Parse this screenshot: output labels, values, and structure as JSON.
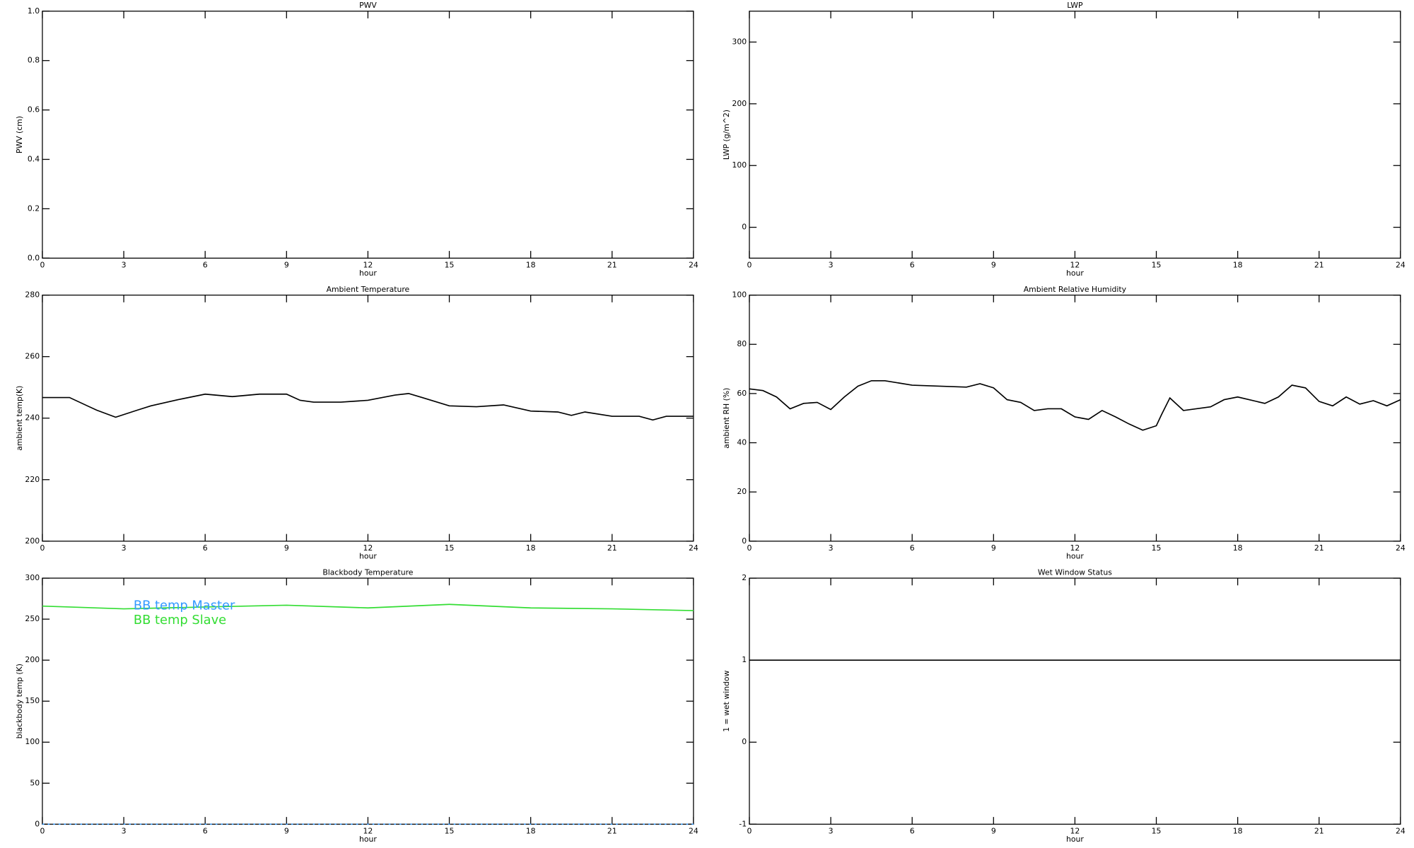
{
  "chart_data": [
    {
      "type": "line",
      "title": "PWV",
      "xlabel": "hour",
      "ylabel": "PWV (cm)",
      "xlim": [
        0,
        24
      ],
      "xticks": [
        0,
        3,
        6,
        9,
        12,
        15,
        18,
        21,
        24
      ],
      "ylim": [
        0,
        1
      ],
      "yticks": [
        {
          "value": 0,
          "label": "0.0"
        },
        {
          "value": 0.2,
          "label": "0.2"
        },
        {
          "value": 0.4,
          "label": "0.4"
        },
        {
          "value": 0.6,
          "label": "0.6"
        },
        {
          "value": 0.8,
          "label": "0.8"
        },
        {
          "value": 1,
          "label": "1.0"
        }
      ]
    },
    {
      "type": "line",
      "title": "LWP",
      "xlabel": "hour",
      "ylabel": "LWP (g/m^2)",
      "xlim": [
        0,
        24
      ],
      "xticks": [
        0,
        3,
        6,
        9,
        12,
        15,
        18,
        21,
        24
      ],
      "ylim": [
        -50,
        350
      ],
      "yticks": [
        0,
        100,
        200,
        300
      ]
    },
    {
      "type": "line",
      "title": "Ambient Temperature",
      "xlabel": "hour",
      "ylabel": "ambient temp(K)",
      "xlim": [
        0,
        24
      ],
      "xticks": [
        0,
        3,
        6,
        9,
        12,
        15,
        18,
        21,
        24
      ],
      "ylim": [
        200,
        280
      ],
      "yticks": [
        200,
        220,
        240,
        260,
        280
      ],
      "x": [
        0,
        1,
        2,
        2.7,
        3.5,
        4,
        5,
        6,
        7,
        8,
        9,
        9.5,
        10,
        11,
        12,
        13,
        13.5,
        14,
        15,
        16,
        17,
        18,
        19,
        19.5,
        20,
        21,
        22,
        22.5,
        23,
        24
      ],
      "series": [
        {
          "name": "ambient temp",
          "color": "#000000",
          "values": [
            246.7,
            246.7,
            242.6,
            240.3,
            242.6,
            244,
            246,
            247.8,
            247,
            247.8,
            247.8,
            245.8,
            245.2,
            245.2,
            245.8,
            247.5,
            248,
            246.7,
            244,
            243.7,
            244.3,
            242.3,
            242,
            240.9,
            242,
            240.6,
            240.6,
            239.4,
            240.6,
            240.6
          ]
        }
      ]
    },
    {
      "type": "line",
      "title": "Ambient Relative Humidity",
      "xlabel": "hour",
      "ylabel": "ambient RH (%)",
      "xlim": [
        0,
        24
      ],
      "xticks": [
        0,
        3,
        6,
        9,
        12,
        15,
        18,
        21,
        24
      ],
      "ylim": [
        0,
        100
      ],
      "yticks": [
        0,
        20,
        40,
        60,
        80,
        100
      ],
      "x": [
        0,
        0.5,
        1,
        1.5,
        2,
        2.5,
        3,
        3.5,
        4,
        4.5,
        5,
        6,
        7,
        8,
        8.5,
        9,
        9.5,
        10,
        10.5,
        11,
        11.5,
        12,
        12.5,
        13,
        13.5,
        14,
        14.5,
        15,
        15.2,
        15.5,
        16,
        17,
        17.5,
        18,
        19,
        19.5,
        20,
        20.5,
        21,
        21.5,
        22,
        22.5,
        23,
        23.5,
        24
      ],
      "series": [
        {
          "name": "ambient RH",
          "color": "#000000",
          "values": [
            61.9,
            61.2,
            58.6,
            53.8,
            56,
            56.4,
            53.5,
            58.6,
            63,
            65.2,
            65.2,
            63.4,
            63,
            62.6,
            64,
            62.3,
            57.5,
            56.4,
            53.1,
            53.8,
            53.8,
            50.5,
            49.5,
            53.1,
            50.5,
            47.6,
            45.1,
            46.9,
            51.6,
            58.2,
            53.1,
            54.6,
            57.5,
            58.6,
            56,
            58.6,
            63.4,
            62.3,
            56.8,
            55,
            58.6,
            55.7,
            57.1,
            55,
            57.5
          ]
        }
      ]
    },
    {
      "type": "line",
      "title": "Blackbody Temperature",
      "xlabel": "hour",
      "ylabel": "blackbody temp (K)",
      "xlim": [
        0,
        24
      ],
      "xticks": [
        0,
        3,
        6,
        9,
        12,
        15,
        18,
        21,
        24
      ],
      "ylim": [
        0,
        300
      ],
      "yticks": [
        0,
        50,
        100,
        150,
        200,
        250,
        300
      ],
      "legend": "upper left",
      "x": [
        0,
        3,
        6,
        9,
        12,
        15,
        18,
        21,
        24
      ],
      "series": [
        {
          "name": "BB temp Master",
          "color": "#3399ff",
          "dash": true,
          "values": [
            0,
            0,
            0,
            0,
            0,
            0,
            0,
            0,
            0
          ]
        },
        {
          "name": "BB temp Slave",
          "color": "#33dd33",
          "values": [
            265.9,
            262.6,
            264.8,
            267,
            263.7,
            268,
            263.7,
            262.6,
            260.4
          ]
        }
      ]
    },
    {
      "type": "line",
      "title": "Wet Window Status",
      "xlabel": "hour",
      "ylabel": "1 = wet window",
      "xlim": [
        0,
        24
      ],
      "xticks": [
        0,
        3,
        6,
        9,
        12,
        15,
        18,
        21,
        24
      ],
      "ylim": [
        -1,
        2
      ],
      "yticks": [
        -1,
        0,
        1,
        2
      ],
      "x": [
        0,
        24
      ],
      "series": [
        {
          "name": "wet window",
          "color": "#000000",
          "values": [
            1,
            1
          ]
        }
      ]
    }
  ]
}
